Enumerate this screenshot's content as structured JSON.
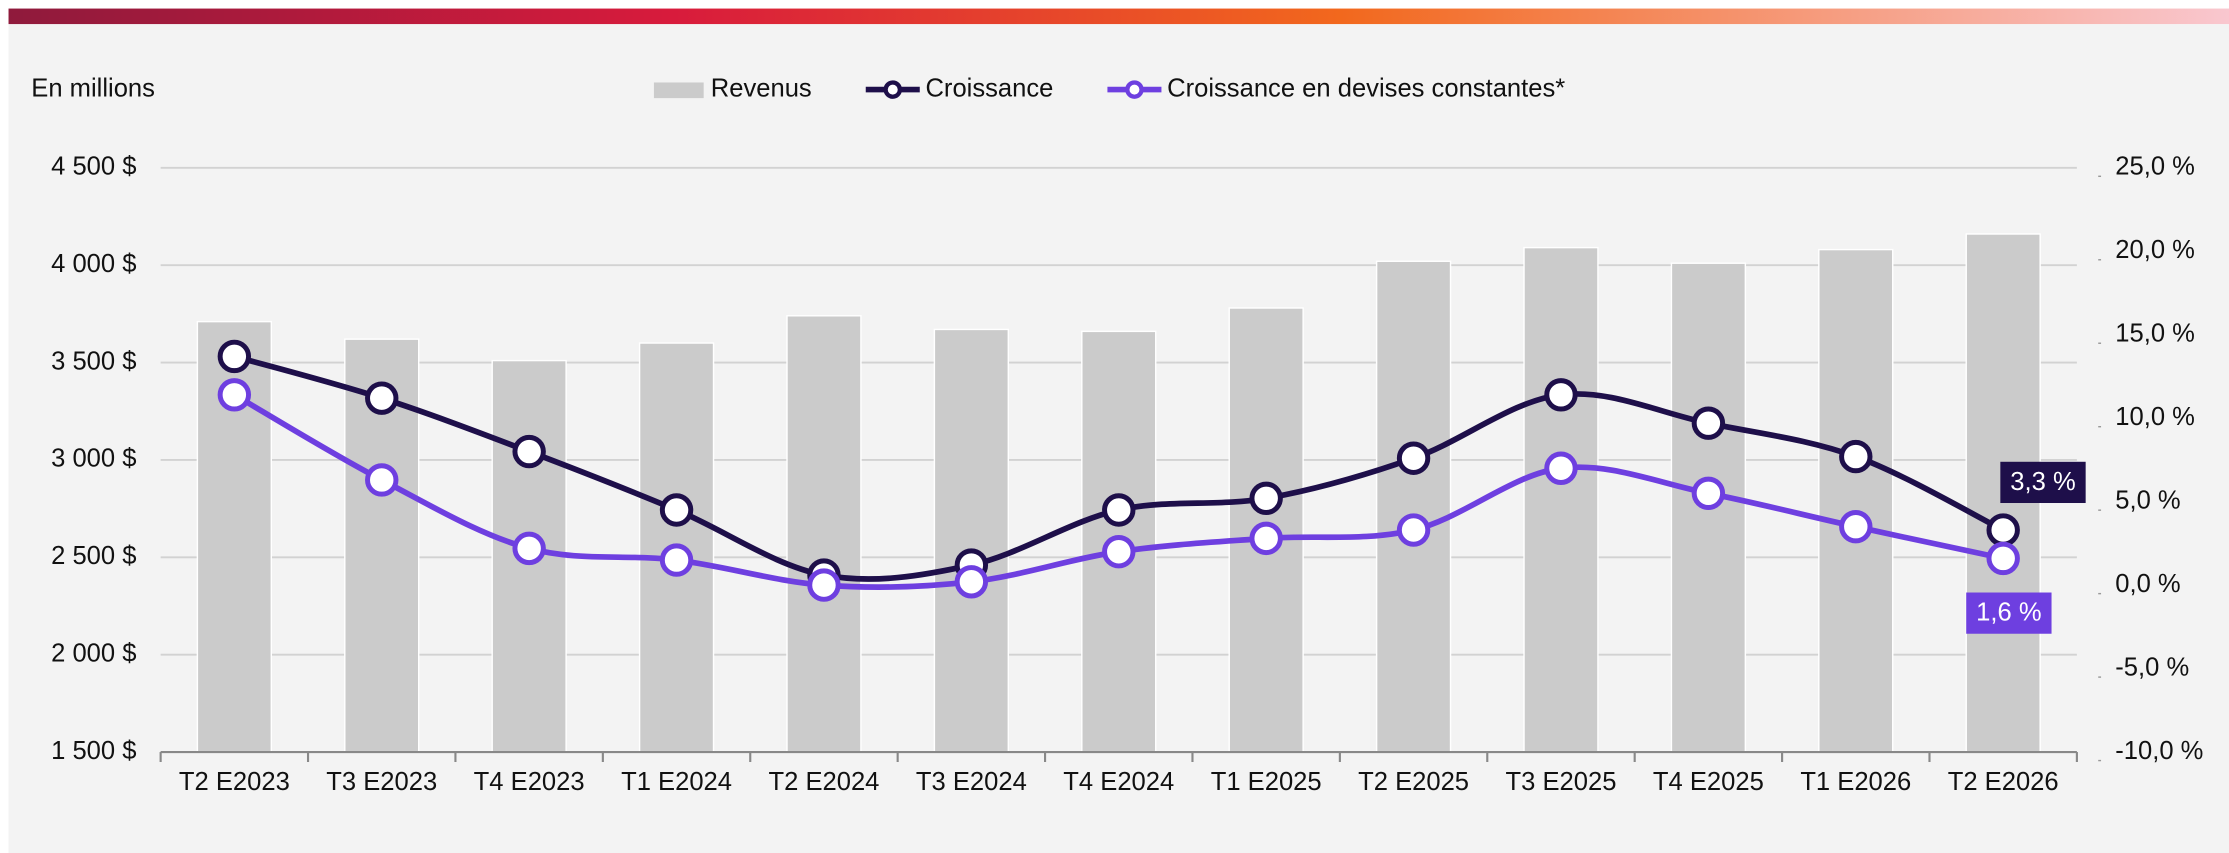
{
  "chart_data": {
    "type": "bar_line",
    "ylabel": "En millions",
    "categories": [
      "T2 E2023",
      "T3 E2023",
      "T4 E2023",
      "T1 E2024",
      "T2 E2024",
      "T3 E2024",
      "T4 E2024",
      "T1 E2025",
      "T2 E2025",
      "T3 E2025",
      "T4 E2025",
      "T1 E2026",
      "T2 E2026"
    ],
    "series": [
      {
        "name": "Revenus",
        "type": "bar",
        "color": "#cbcbcb",
        "values": [
          3710,
          3620,
          3510,
          3600,
          3740,
          3670,
          3660,
          3780,
          4020,
          4090,
          4010,
          4080,
          4160
        ]
      },
      {
        "name": "Croissance",
        "type": "line",
        "axis": "y2",
        "color": "#1e0f4a",
        "values": [
          13.7,
          11.2,
          8.0,
          4.5,
          0.6,
          1.2,
          4.5,
          5.2,
          7.6,
          11.4,
          9.7,
          7.7,
          3.3
        ],
        "value_labels": [
          null,
          null,
          null,
          null,
          null,
          null,
          null,
          null,
          null,
          null,
          null,
          null,
          "3,3 %"
        ]
      },
      {
        "name": "Croissance en devises constantes*",
        "type": "line",
        "axis": "y2",
        "color": "#6e3fe0",
        "values": [
          11.4,
          6.3,
          2.2,
          1.5,
          0.0,
          0.2,
          2.0,
          2.8,
          3.3,
          7.0,
          5.5,
          3.5,
          1.6
        ],
        "value_labels": [
          null,
          null,
          null,
          null,
          null,
          null,
          null,
          null,
          null,
          null,
          null,
          null,
          "1,6 %"
        ]
      }
    ],
    "ylim": [
      1500,
      4500
    ],
    "yticks": [
      {
        "value": 1500,
        "label": "1 500 $"
      },
      {
        "value": 2000,
        "label": "2 000 $"
      },
      {
        "value": 2500,
        "label": "2 500 $"
      },
      {
        "value": 3000,
        "label": "3 000 $"
      },
      {
        "value": 3500,
        "label": "3 500 $"
      },
      {
        "value": 4000,
        "label": "4 000 $"
      },
      {
        "value": 4500,
        "label": "4 500 $"
      }
    ],
    "y2lim": [
      -10,
      25
    ],
    "y2ticks": [
      {
        "value": -10,
        "label": "-10,0 %"
      },
      {
        "value": -5,
        "label": "-5,0 %"
      },
      {
        "value": 0,
        "label": "0,0 %"
      },
      {
        "value": 5,
        "label": "5,0 %"
      },
      {
        "value": 10,
        "label": "10,0 %"
      },
      {
        "value": 15,
        "label": "15,0 %"
      },
      {
        "value": 20,
        "label": "20,0 %"
      },
      {
        "value": 25,
        "label": "25,0 %"
      }
    ],
    "grid": true,
    "legend": "top"
  }
}
